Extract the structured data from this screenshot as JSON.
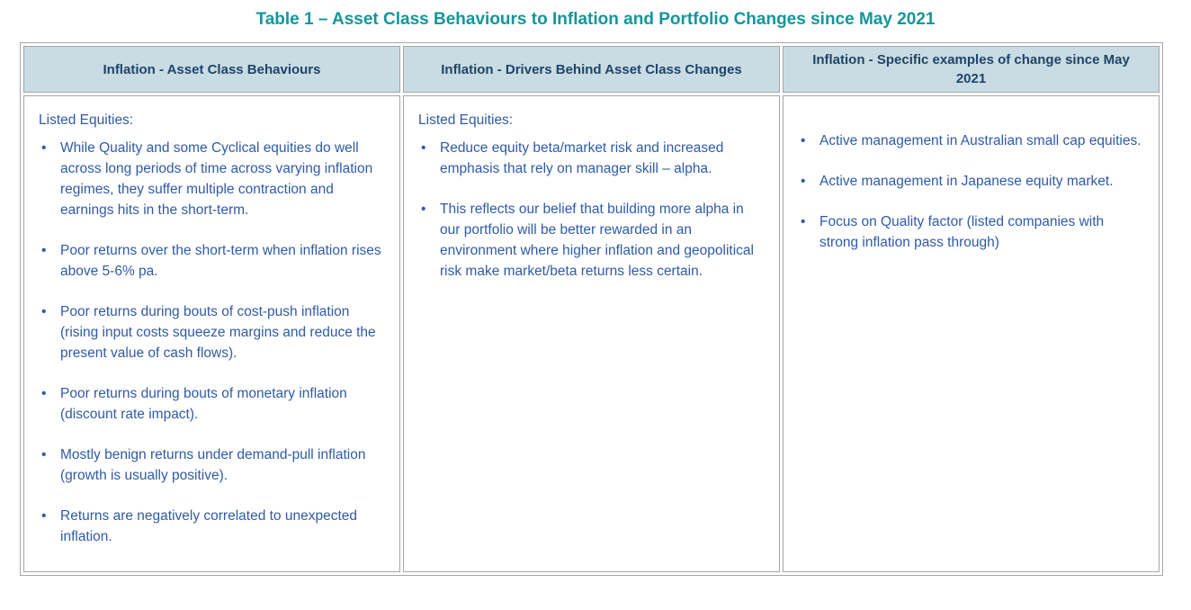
{
  "title": "Table 1 – Asset Class Behaviours to Inflation and Portfolio Changes since May 2021",
  "colors": {
    "title_teal": "#13969C",
    "header_background": "#C9DCE4",
    "header_text": "#1F4468",
    "body_text": "#2F5BA6",
    "border_grey": "#A6A6A6"
  },
  "table": {
    "columns": [
      {
        "header": "Inflation - Asset Class Behaviours",
        "heading": "Listed Equities:",
        "bullets": [
          "While Quality and some Cyclical equities do well across long periods of time across varying inflation regimes, they suffer multiple contraction and earnings hits in the short-term.",
          "Poor returns over the short-term when inflation rises above 5-6% pa.",
          "Poor returns during bouts of cost-push inflation (rising input costs squeeze margins and reduce the present value of cash flows).",
          "Poor returns during bouts of monetary inflation (discount rate impact).",
          "Mostly benign returns under demand-pull inflation (growth is usually positive).",
          "Returns are negatively correlated to unexpected inflation."
        ]
      },
      {
        "header": "Inflation - Drivers Behind Asset Class Changes",
        "heading": "Listed Equities:",
        "bullets": [
          "Reduce equity beta/market risk and increased emphasis that rely on manager skill – alpha.",
          "This reflects our belief that building more alpha in our portfolio will be better rewarded in an environment where higher inflation and geopolitical risk make market/beta returns less certain."
        ]
      },
      {
        "header": "Inflation - Specific examples of change since May 2021",
        "heading": "",
        "bullets": [
          "Active management in Australian small cap equities.",
          "Active management in Japanese equity market.",
          "Focus on Quality factor (listed companies with strong inflation pass through)"
        ]
      }
    ]
  }
}
